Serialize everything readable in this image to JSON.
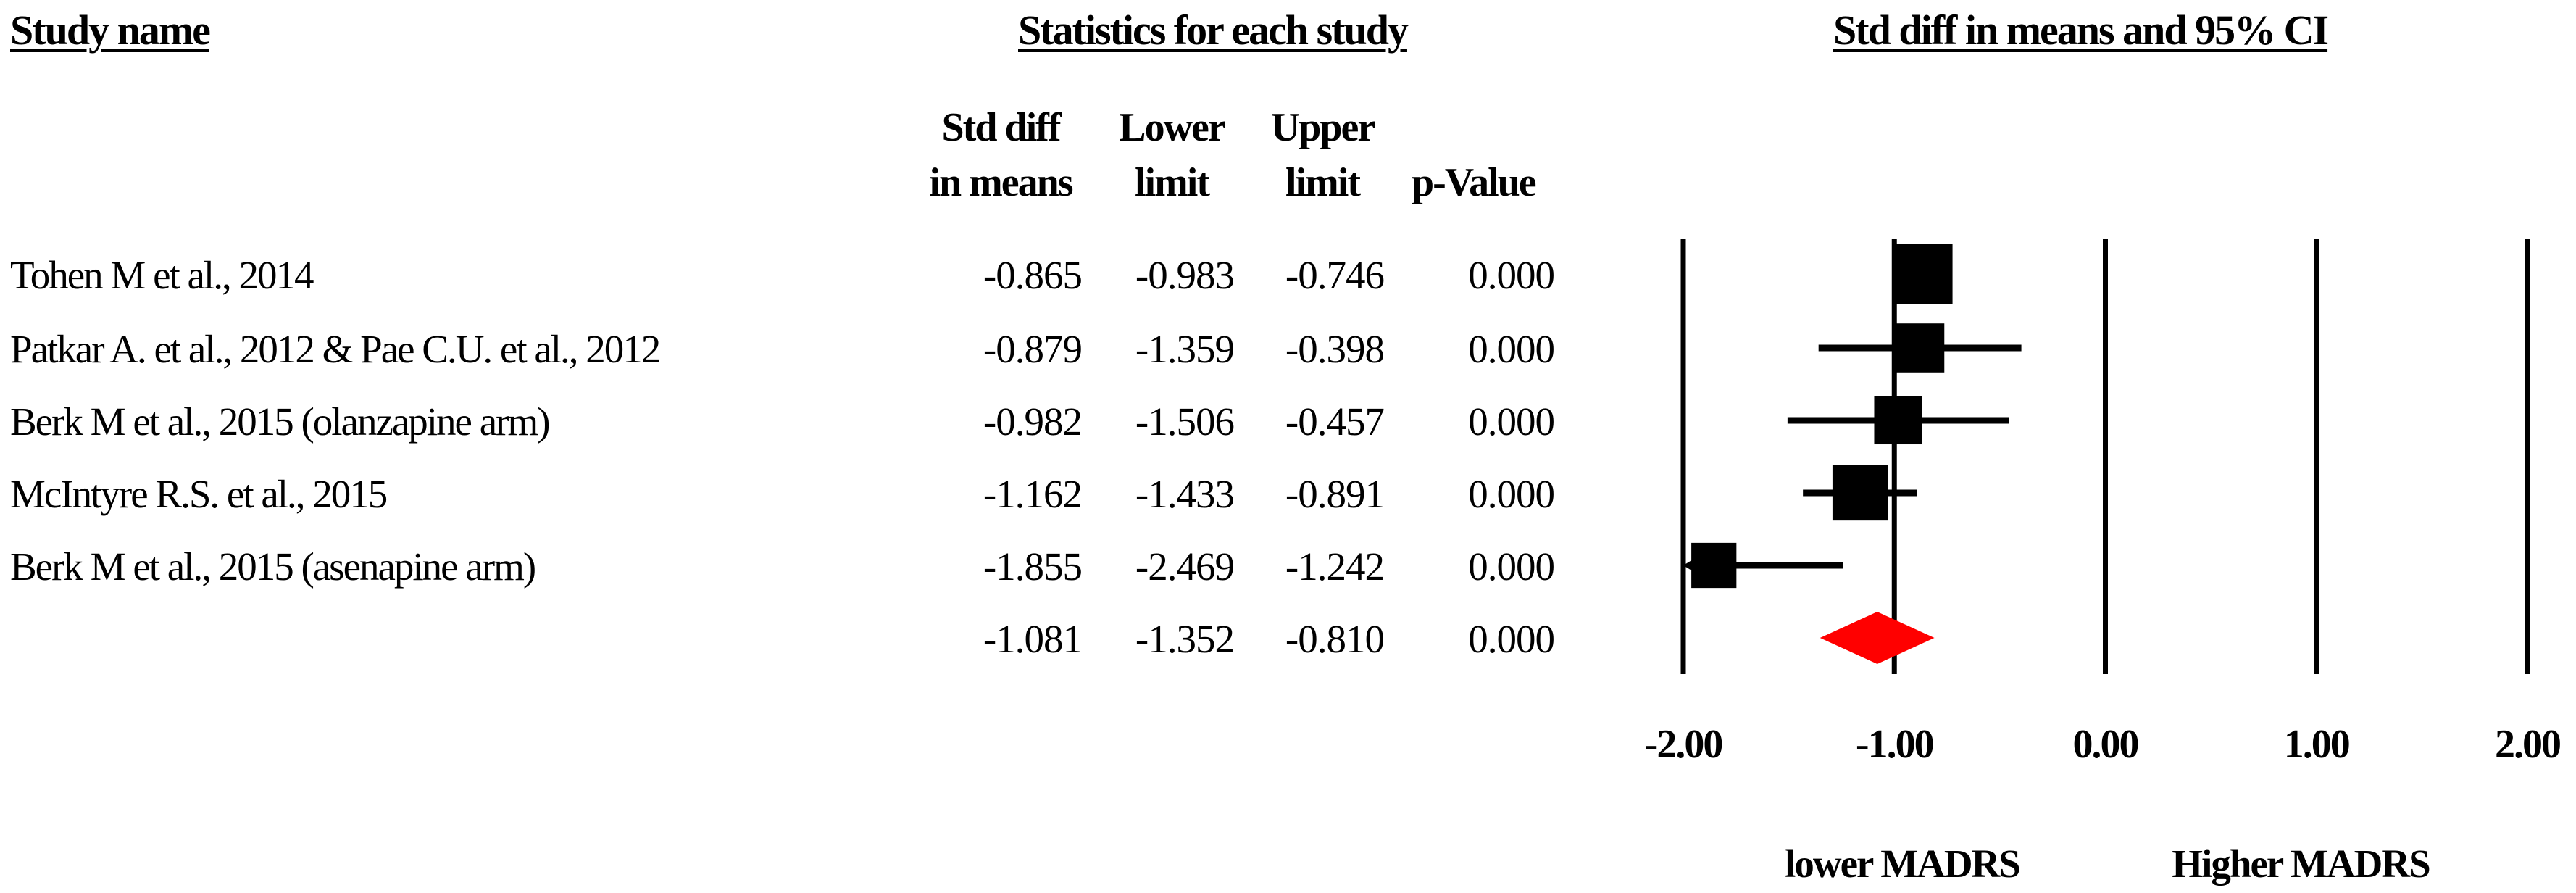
{
  "headers": {
    "study_name": "Study name",
    "statistics": "Statistics for each study",
    "plot": "Std diff in means and 95% CI"
  },
  "columns": {
    "std_diff": [
      "Std diff",
      "in means"
    ],
    "lower": [
      "Lower",
      "limit"
    ],
    "upper": [
      "Upper",
      "limit"
    ],
    "p_value": "p-Value"
  },
  "rows": [
    {
      "study": "Tohen M et al., 2014",
      "std_diff": "-0.865",
      "lower": "-0.983",
      "upper": "-0.746",
      "p_value": "0.000"
    },
    {
      "study": "Patkar A. et al., 2012 & Pae C.U. et al., 2012",
      "std_diff": "-0.879",
      "lower": "-1.359",
      "upper": "-0.398",
      "p_value": "0.000"
    },
    {
      "study": "Berk M et al., 2015 (olanzapine arm)",
      "std_diff": "-0.982",
      "lower": "-1.506",
      "upper": "-0.457",
      "p_value": "0.000"
    },
    {
      "study": "McIntyre R.S. et al., 2015",
      "std_diff": "-1.162",
      "lower": "-1.433",
      "upper": "-0.891",
      "p_value": "0.000"
    },
    {
      "study": "Berk M et al., 2015 (asenapine arm)",
      "std_diff": "-1.855",
      "lower": "-2.469",
      "upper": "-1.242",
      "p_value": "0.000"
    }
  ],
  "summary": {
    "std_diff": "-1.081",
    "lower": "-1.352",
    "upper": "-0.810",
    "p_value": "0.000"
  },
  "chart_data": {
    "type": "forest",
    "xlim": [
      -2,
      2
    ],
    "x_ticks": [
      -2,
      -1,
      0,
      1,
      2
    ],
    "x_tick_labels": [
      "-2.00",
      "-1.00",
      "0.00",
      "1.00",
      "2.00"
    ],
    "studies": [
      {
        "estimate": -0.865,
        "lower": -0.983,
        "upper": -0.746,
        "weight": 1.0
      },
      {
        "estimate": -0.879,
        "lower": -1.359,
        "upper": -0.398,
        "weight": 0.62
      },
      {
        "estimate": -0.982,
        "lower": -1.506,
        "upper": -0.457,
        "weight": 0.58
      },
      {
        "estimate": -1.162,
        "lower": -1.433,
        "upper": -0.891,
        "weight": 0.85
      },
      {
        "estimate": -1.855,
        "lower": -2.469,
        "upper": -1.242,
        "weight": 0.48
      }
    ],
    "summary": {
      "estimate": -1.081,
      "lower": -1.352,
      "upper": -0.81
    },
    "favours_left": "lower MADRS",
    "favours_right": "Higher MADRS",
    "marker_color": "#000000",
    "summary_color": "#ff0000"
  }
}
